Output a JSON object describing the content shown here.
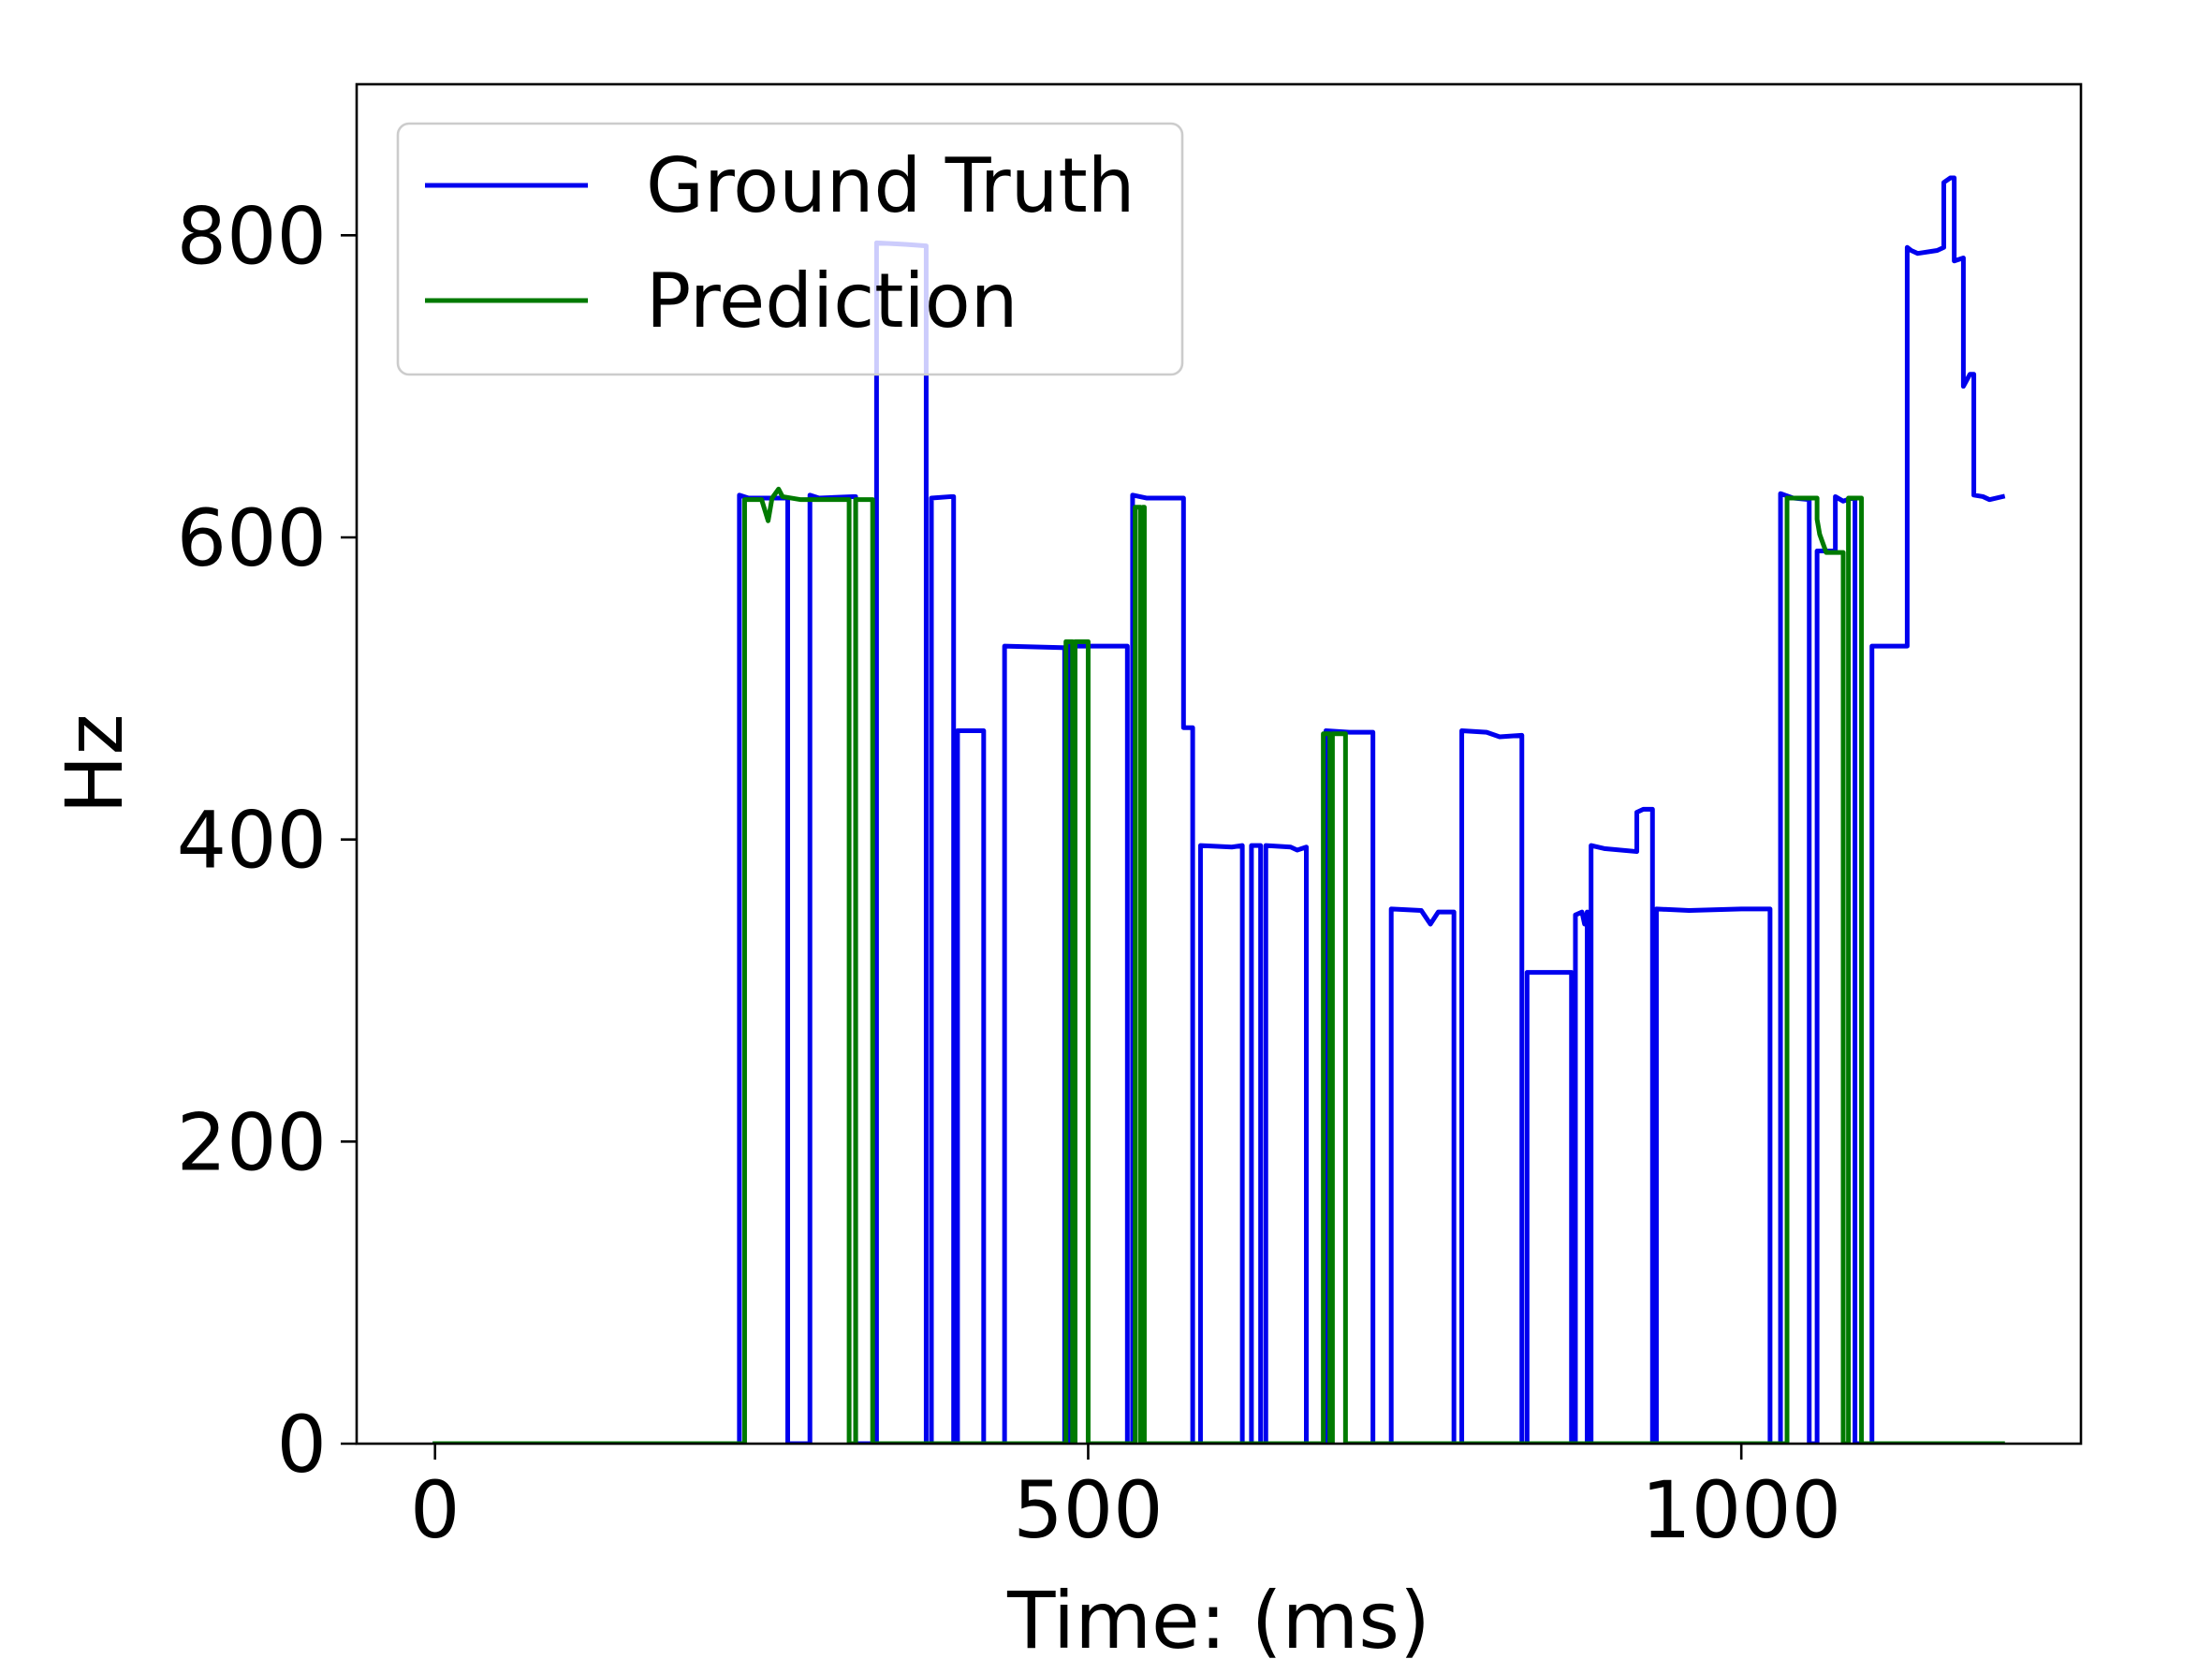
{
  "chart_data": {
    "type": "line",
    "title": "",
    "xlabel": "Time: (ms)",
    "ylabel": "Hz",
    "xlim": [
      -60,
      1260
    ],
    "ylim": [
      0,
      900
    ],
    "xticks": [
      0,
      500,
      1000
    ],
    "yticks": [
      0,
      200,
      400,
      600,
      800
    ],
    "grid": false,
    "legend": {
      "position": "top-left"
    },
    "series": [
      {
        "name": "Ground Truth",
        "color": "#0000ee",
        "points": [
          [
            0,
            0
          ],
          [
            233,
            0
          ],
          [
            233,
            628
          ],
          [
            240,
            626
          ],
          [
            265,
            626
          ],
          [
            270,
            626
          ],
          [
            270,
            0
          ],
          [
            287,
            0
          ],
          [
            287,
            628
          ],
          [
            294,
            626
          ],
          [
            320,
            627
          ],
          [
            322,
            627
          ],
          [
            322,
            0
          ],
          [
            338,
            0
          ],
          [
            338,
            795
          ],
          [
            360,
            794
          ],
          [
            376,
            793
          ],
          [
            376,
            0
          ],
          [
            380,
            0
          ],
          [
            380,
            626
          ],
          [
            395,
            627
          ],
          [
            397,
            627
          ],
          [
            397,
            0
          ],
          [
            400,
            0
          ],
          [
            400,
            472
          ],
          [
            420,
            472
          ],
          [
            420,
            0
          ],
          [
            436,
            0
          ],
          [
            436,
            528
          ],
          [
            480,
            527
          ],
          [
            482,
            527
          ],
          [
            482,
            0
          ],
          [
            485,
            0
          ],
          [
            485,
            528
          ],
          [
            515,
            528
          ],
          [
            530,
            528
          ],
          [
            530,
            0
          ],
          [
            534,
            0
          ],
          [
            534,
            628
          ],
          [
            545,
            626
          ],
          [
            573,
            626
          ],
          [
            573,
            474
          ],
          [
            580,
            474
          ],
          [
            580,
            0
          ],
          [
            586,
            0
          ],
          [
            586,
            396
          ],
          [
            610,
            395
          ],
          [
            618,
            396
          ],
          [
            618,
            0
          ],
          [
            625,
            0
          ],
          [
            625,
            396
          ],
          [
            632,
            396
          ],
          [
            632,
            0
          ],
          [
            636,
            0
          ],
          [
            636,
            396
          ],
          [
            655,
            395
          ],
          [
            660,
            393
          ],
          [
            667,
            395
          ],
          [
            667,
            0
          ],
          [
            682,
            0
          ],
          [
            682,
            472
          ],
          [
            700,
            471
          ],
          [
            718,
            471
          ],
          [
            718,
            0
          ],
          [
            732,
            0
          ],
          [
            732,
            354
          ],
          [
            755,
            353
          ],
          [
            762,
            344
          ],
          [
            768,
            352
          ],
          [
            780,
            352
          ],
          [
            780,
            0
          ],
          [
            786,
            0
          ],
          [
            786,
            472
          ],
          [
            805,
            471
          ],
          [
            815,
            468
          ],
          [
            832,
            469
          ],
          [
            832,
            0
          ],
          [
            836,
            0
          ],
          [
            836,
            312
          ],
          [
            852,
            312
          ],
          [
            870,
            312
          ],
          [
            870,
            0
          ],
          [
            873,
            0
          ],
          [
            873,
            350
          ],
          [
            878,
            352
          ],
          [
            880,
            344
          ],
          [
            882,
            352
          ],
          [
            882,
            0
          ],
          [
            885,
            0
          ],
          [
            885,
            396
          ],
          [
            895,
            394
          ],
          [
            920,
            392
          ],
          [
            920,
            418
          ],
          [
            925,
            420
          ],
          [
            932,
            420
          ],
          [
            932,
            0
          ],
          [
            935,
            0
          ],
          [
            935,
            354
          ],
          [
            960,
            353
          ],
          [
            1000,
            354
          ],
          [
            1022,
            354
          ],
          [
            1022,
            0
          ],
          [
            1030,
            0
          ],
          [
            1030,
            629
          ],
          [
            1040,
            626
          ],
          [
            1052,
            625
          ],
          [
            1052,
            0
          ],
          [
            1058,
            0
          ],
          [
            1058,
            591
          ],
          [
            1072,
            591
          ],
          [
            1072,
            627
          ],
          [
            1078,
            624
          ],
          [
            1085,
            626
          ],
          [
            1087,
            626
          ],
          [
            1087,
            0
          ],
          [
            1100,
            0
          ],
          [
            1100,
            528
          ],
          [
            1118,
            528
          ],
          [
            1127,
            528
          ],
          [
            1127,
            792
          ],
          [
            1130,
            790
          ],
          [
            1135,
            788
          ],
          [
            1150,
            790
          ],
          [
            1155,
            792
          ],
          [
            1155,
            835
          ],
          [
            1160,
            838
          ],
          [
            1163,
            838
          ],
          [
            1163,
            783
          ],
          [
            1170,
            785
          ],
          [
            1170,
            700
          ],
          [
            1175,
            708
          ],
          [
            1178,
            708
          ],
          [
            1178,
            628
          ],
          [
            1185,
            627
          ],
          [
            1190,
            625
          ],
          [
            1200,
            627
          ]
        ]
      },
      {
        "name": "Prediction",
        "color": "#007a00",
        "points": [
          [
            0,
            0
          ],
          [
            237,
            0
          ],
          [
            237,
            625
          ],
          [
            250,
            625
          ],
          [
            255,
            611
          ],
          [
            258,
            626
          ],
          [
            263,
            632
          ],
          [
            266,
            627
          ],
          [
            280,
            625
          ],
          [
            292,
            625
          ],
          [
            317,
            625
          ],
          [
            317,
            0
          ],
          [
            322,
            0
          ],
          [
            322,
            625
          ],
          [
            335,
            625
          ],
          [
            335,
            0
          ],
          [
            483,
            0
          ],
          [
            483,
            531
          ],
          [
            488,
            531
          ],
          [
            488,
            0
          ],
          [
            490,
            0
          ],
          [
            490,
            531
          ],
          [
            500,
            531
          ],
          [
            500,
            0
          ],
          [
            536,
            0
          ],
          [
            536,
            620
          ],
          [
            540,
            620
          ],
          [
            540,
            0
          ],
          [
            542,
            0
          ],
          [
            542,
            620
          ],
          [
            543,
            620
          ],
          [
            543,
            0
          ],
          [
            680,
            0
          ],
          [
            680,
            470
          ],
          [
            685,
            470
          ],
          [
            685,
            0
          ],
          [
            687,
            0
          ],
          [
            687,
            470
          ],
          [
            697,
            470
          ],
          [
            697,
            0
          ],
          [
            1035,
            0
          ],
          [
            1035,
            626
          ],
          [
            1050,
            626
          ],
          [
            1058,
            626
          ],
          [
            1058,
            612
          ],
          [
            1060,
            602
          ],
          [
            1065,
            590
          ],
          [
            1078,
            590
          ],
          [
            1078,
            0
          ],
          [
            1082,
            0
          ],
          [
            1082,
            626
          ],
          [
            1092,
            626
          ],
          [
            1092,
            0
          ],
          [
            1200,
            0
          ]
        ]
      }
    ]
  }
}
